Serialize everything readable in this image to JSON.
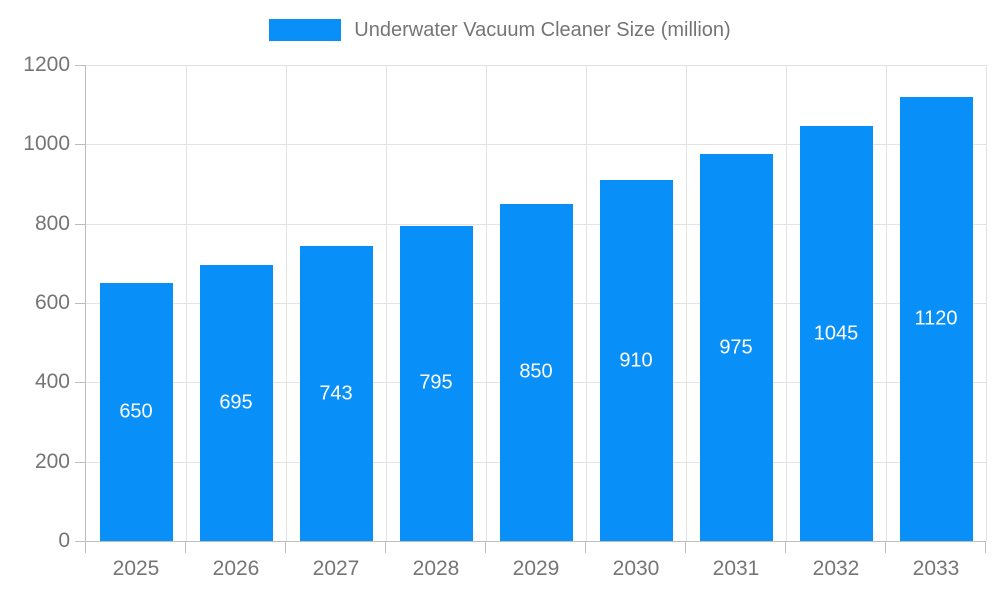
{
  "chart_data": {
    "type": "bar",
    "title": "Underwater Vacuum Cleaner Size (million)",
    "categories": [
      "2025",
      "2026",
      "2027",
      "2028",
      "2029",
      "2030",
      "2031",
      "2032",
      "2033"
    ],
    "series": [
      {
        "name": "Underwater Vacuum Cleaner Size (million)",
        "values": [
          650,
          695,
          743,
          795,
          850,
          910,
          975,
          1045,
          1120
        ]
      }
    ],
    "xlabel": "",
    "ylabel": "",
    "ylim": [
      0,
      1200
    ],
    "ytick_step": 200,
    "yticks": [
      "0",
      "200",
      "400",
      "600",
      "800",
      "1000",
      "1200"
    ],
    "grid": true,
    "legend_position": "top",
    "bar_value_labels_visible": true,
    "colors": {
      "bar": "#0890f8",
      "bar_value_label": "#ffffff",
      "axis_text": "#757575",
      "legend_text": "#757575",
      "gridline": "#e3e3e3",
      "axis_line": "#bdbdbd",
      "background": "#ffffff"
    }
  }
}
